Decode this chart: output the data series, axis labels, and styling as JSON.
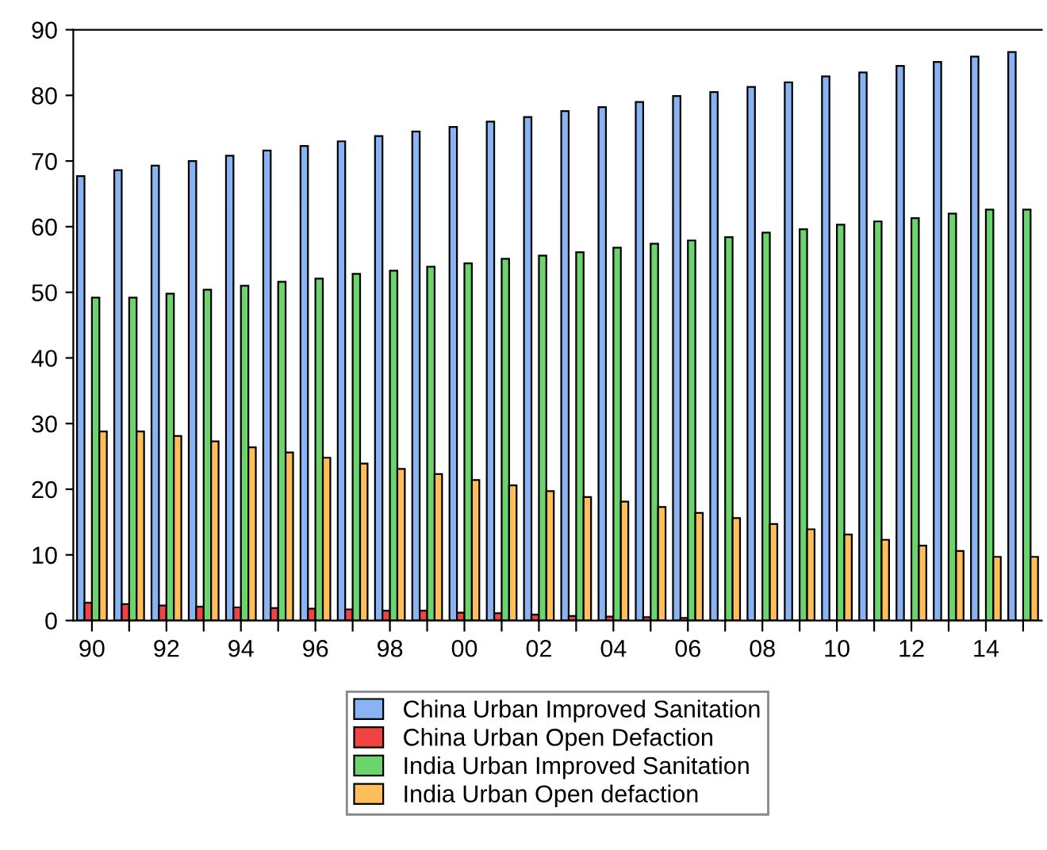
{
  "chart_data": {
    "type": "bar",
    "categories": [
      "90",
      null,
      "92",
      null,
      "94",
      null,
      "96",
      null,
      "98",
      null,
      "00",
      null,
      "02",
      null,
      "04",
      null,
      "06",
      null,
      "08",
      null,
      "10",
      null,
      "12",
      null,
      "14",
      null
    ],
    "series": [
      {
        "name": "China Urban Improved Sanitation",
        "color": "#88b4f4",
        "values": [
          67.7,
          68.6,
          69.3,
          70.0,
          70.8,
          71.6,
          72.3,
          73.0,
          73.8,
          74.5,
          75.2,
          76.0,
          76.7,
          77.6,
          78.2,
          79.0,
          79.9,
          80.5,
          81.3,
          82.0,
          82.9,
          83.5,
          84.5,
          85.1,
          85.9,
          86.6
        ]
      },
      {
        "name": "China Urban Open Defaction",
        "color": "#f04444",
        "values": [
          2.7,
          2.5,
          2.3,
          2.1,
          2.0,
          1.9,
          1.8,
          1.7,
          1.5,
          1.5,
          1.2,
          1.1,
          0.9,
          0.7,
          0.6,
          0.5,
          0.4,
          null,
          null,
          0.0,
          0.0,
          0.0,
          0.0,
          0.0,
          0.0,
          0.0
        ]
      },
      {
        "name": "India Urban Improved Sanitation",
        "color": "#6cd46c",
        "values": [
          49.2,
          49.2,
          49.8,
          50.4,
          51.0,
          51.6,
          52.1,
          52.8,
          53.3,
          53.9,
          54.4,
          55.1,
          55.6,
          56.1,
          56.8,
          57.4,
          57.9,
          58.4,
          59.1,
          59.6,
          60.3,
          60.8,
          61.3,
          62.0,
          62.6,
          62.6
        ]
      },
      {
        "name": "India Urban Open defaction",
        "color": "#ffbe5a",
        "values": [
          28.8,
          28.8,
          28.1,
          27.3,
          26.4,
          25.6,
          24.8,
          23.9,
          23.1,
          22.3,
          21.4,
          20.6,
          19.7,
          18.8,
          18.1,
          17.3,
          16.4,
          15.6,
          14.7,
          13.9,
          13.1,
          12.3,
          11.4,
          10.6,
          9.7,
          9.7
        ]
      }
    ],
    "ylim": [
      0,
      90
    ],
    "yticks": [
      0,
      10,
      20,
      30,
      40,
      50,
      60,
      70,
      80,
      90
    ],
    "grid": false,
    "legend": "bottom"
  }
}
